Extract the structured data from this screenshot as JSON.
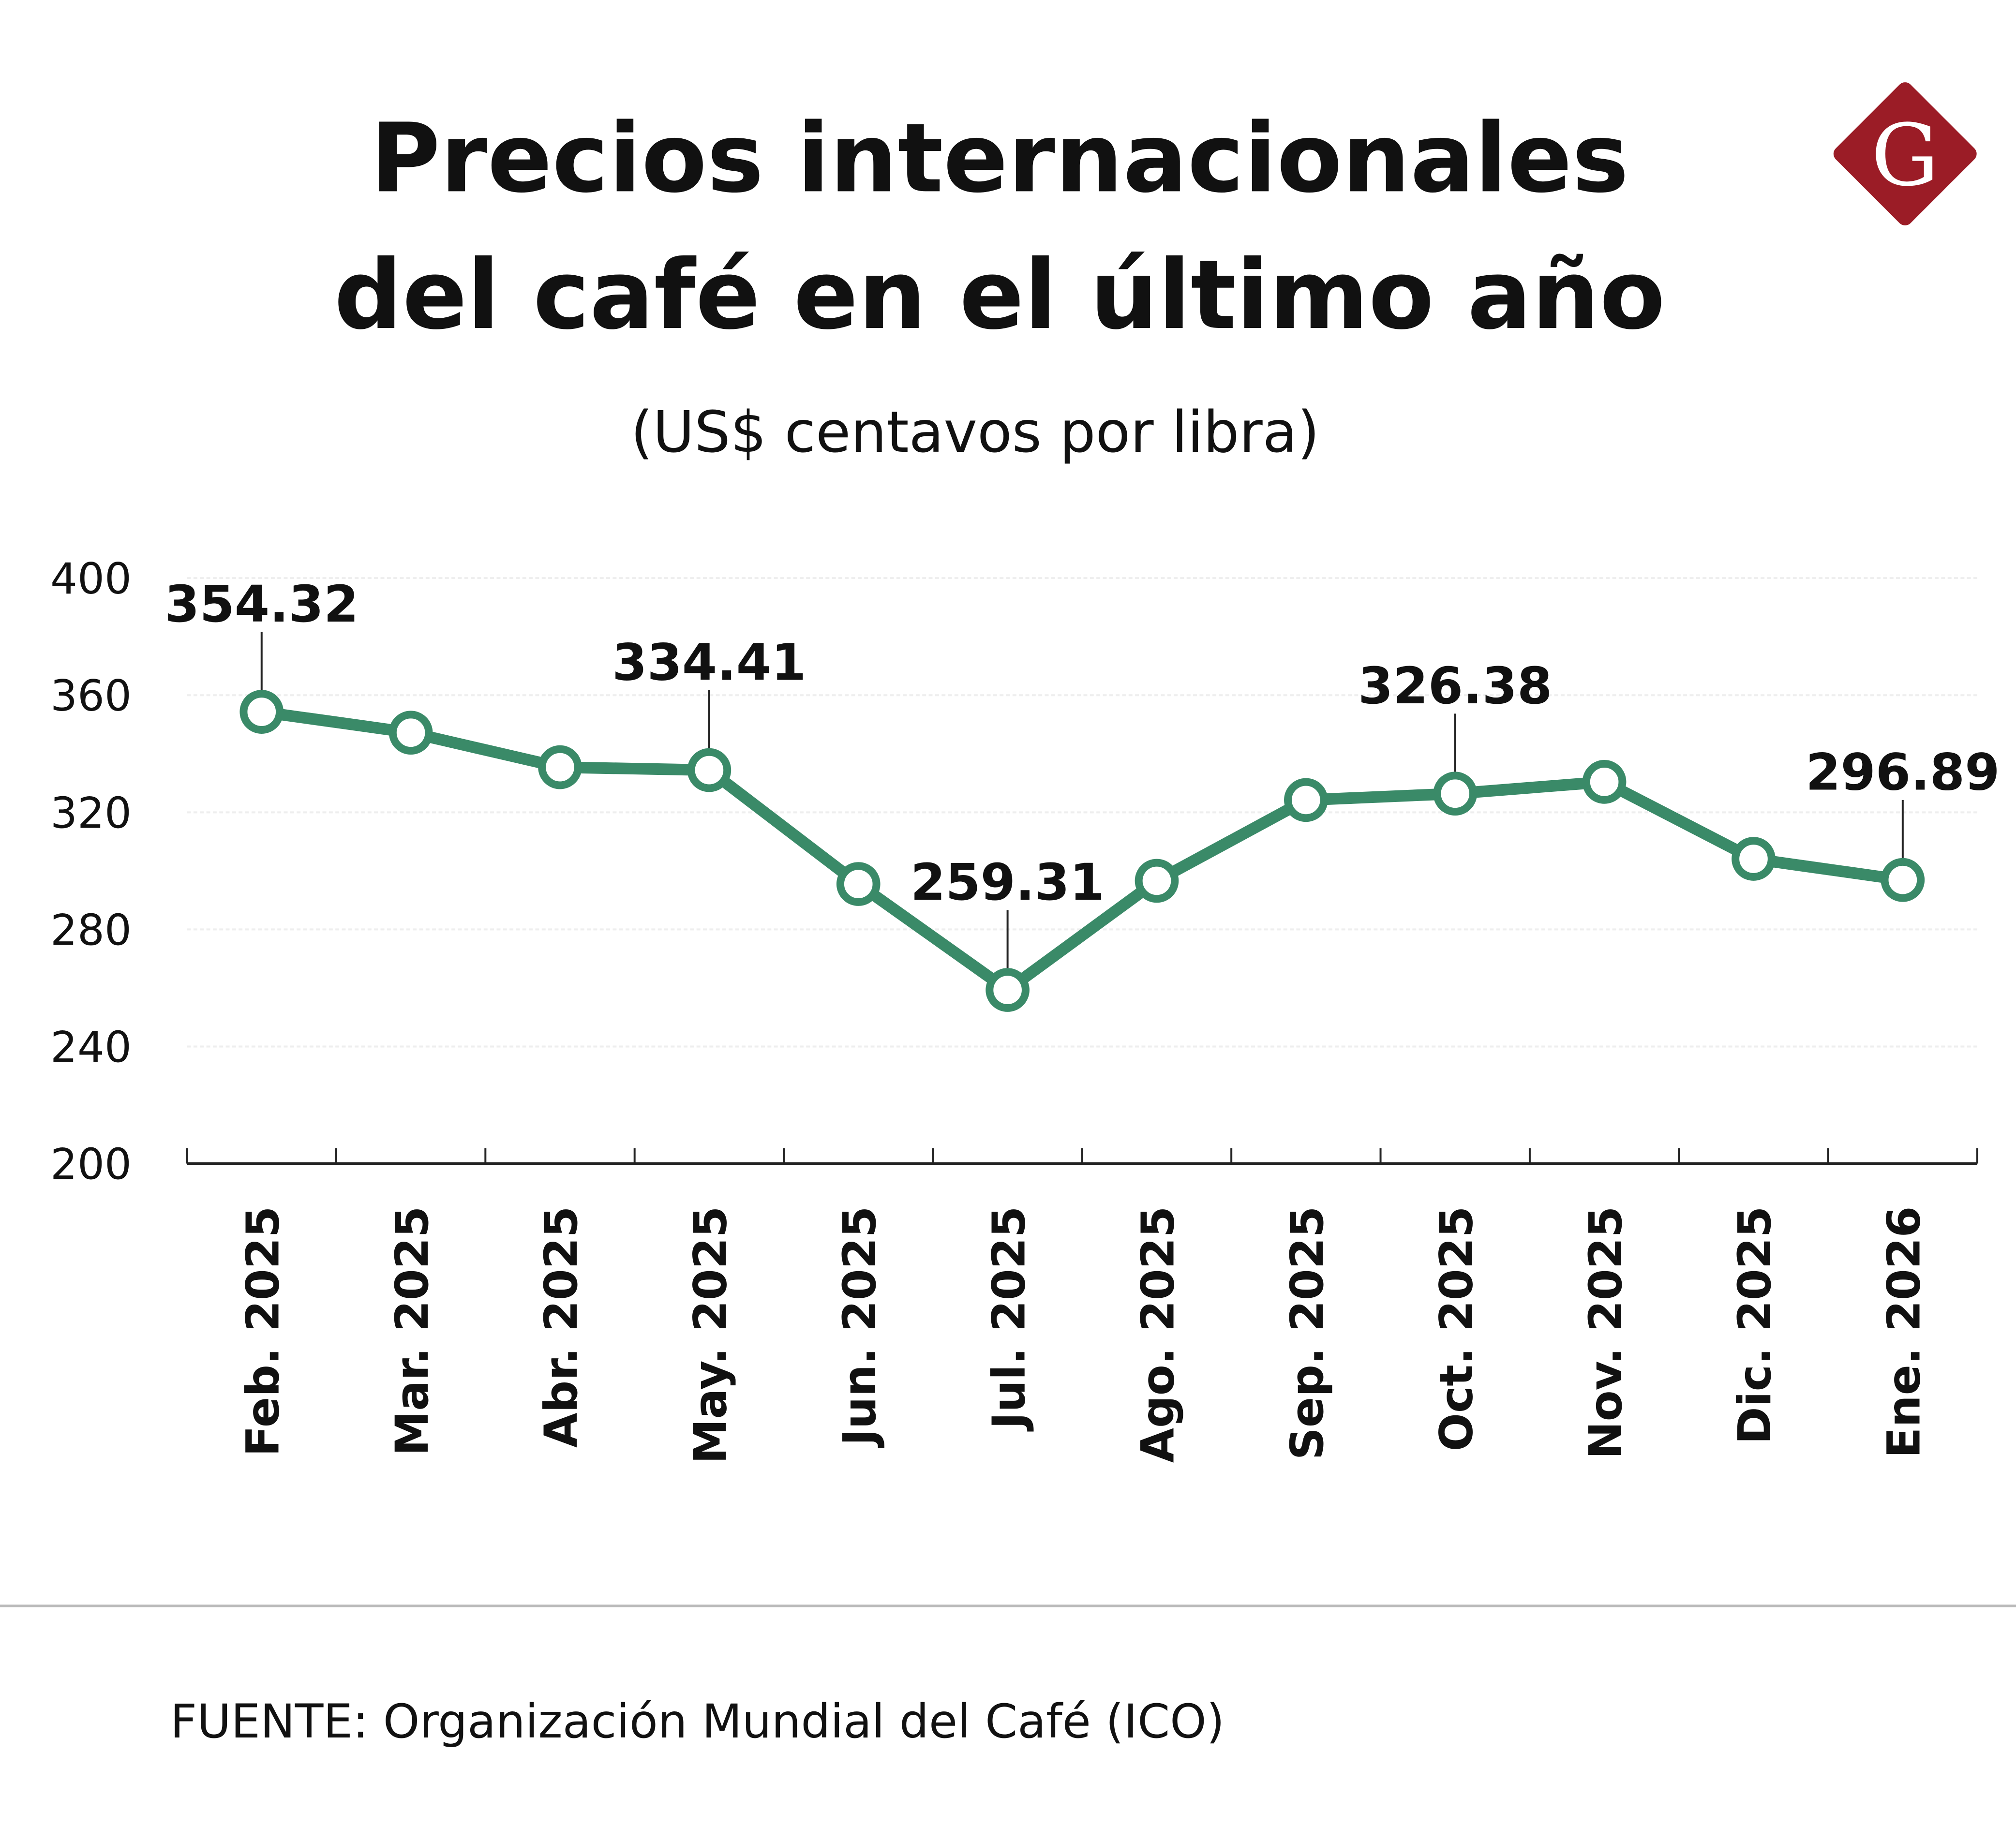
{
  "chart_data": {
    "type": "line",
    "title": "Precios internacionales del café en el último año",
    "title_lines": [
      "Precios internacionales",
      "del café en el último año"
    ],
    "subtitle": "(US$ centavos por libra)",
    "xlabel": "",
    "ylabel": "",
    "ylim": [
      200,
      400
    ],
    "yticks": [
      200,
      240,
      280,
      320,
      360,
      400
    ],
    "grid": true,
    "categories": [
      "Feb. 2025",
      "Mar. 2025",
      "Abr. 2025",
      "May. 2025",
      "Jun. 2025",
      "Jul. 2025",
      "Ago. 2025",
      "Sep. 2025",
      "Oct. 2025",
      "Nov. 2025",
      "Dic. 2025",
      "Ene. 2026"
    ],
    "series": [
      {
        "values": [
          354.32,
          347.2,
          335.4,
          334.41,
          295.5,
          259.31,
          296.6,
          324.2,
          326.38,
          330.4,
          304.1,
          296.89
        ]
      }
    ],
    "data_labels": [
      {
        "index": 0,
        "text": "354.32"
      },
      {
        "index": 3,
        "text": "334.41"
      },
      {
        "index": 5,
        "text": "259.31"
      },
      {
        "index": 8,
        "text": "326.38"
      },
      {
        "index": 11,
        "text": "296.89"
      }
    ],
    "line_color": "#3a8a68"
  },
  "source": "FUENTE:  Organización Mundial del Café (ICO)",
  "logo": {
    "letter": "G",
    "color": "#9b1c26"
  }
}
